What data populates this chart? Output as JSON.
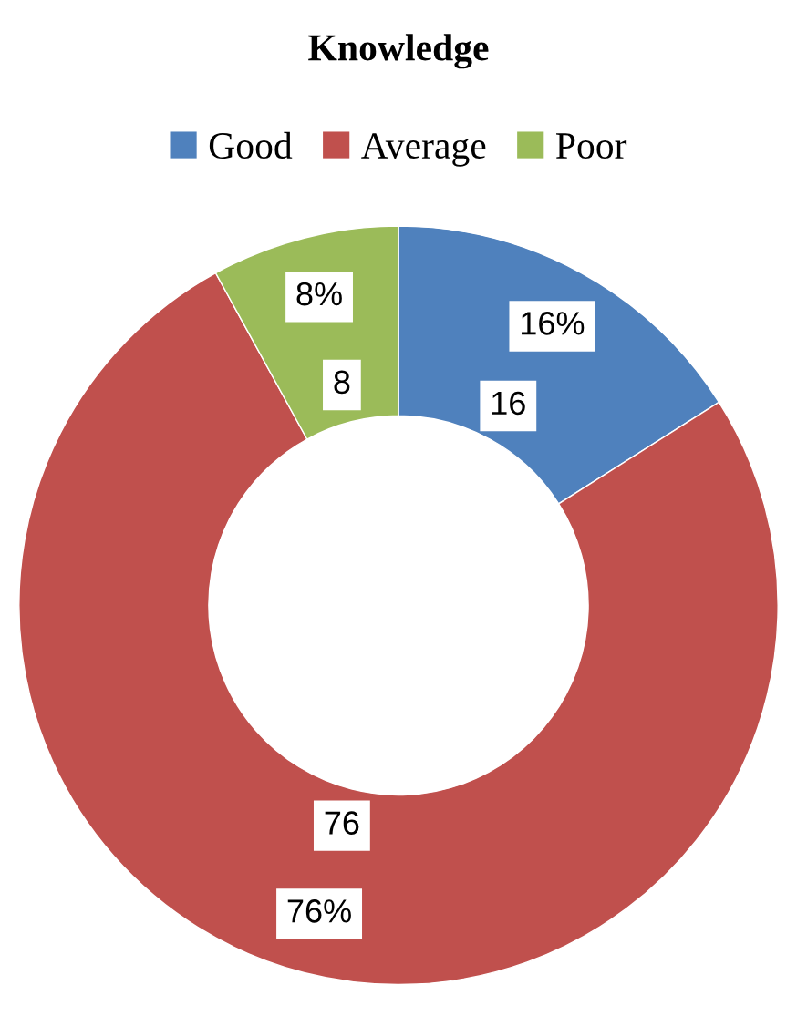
{
  "chart_data": {
    "type": "donut",
    "title": "Knowledge",
    "categories": [
      "Good",
      "Average",
      "Poor"
    ],
    "values": [
      16,
      76,
      8
    ],
    "colors": [
      "#4f81bd",
      "#c0504d",
      "#9bbb59"
    ],
    "value_labels": [
      "16",
      "76",
      "8"
    ],
    "annotations": [
      {
        "text": "16%",
        "x": "Good"
      },
      {
        "text": "76%",
        "x": "Average"
      },
      {
        "text": "8%",
        "x": "Poor"
      }
    ],
    "legend": "top"
  }
}
